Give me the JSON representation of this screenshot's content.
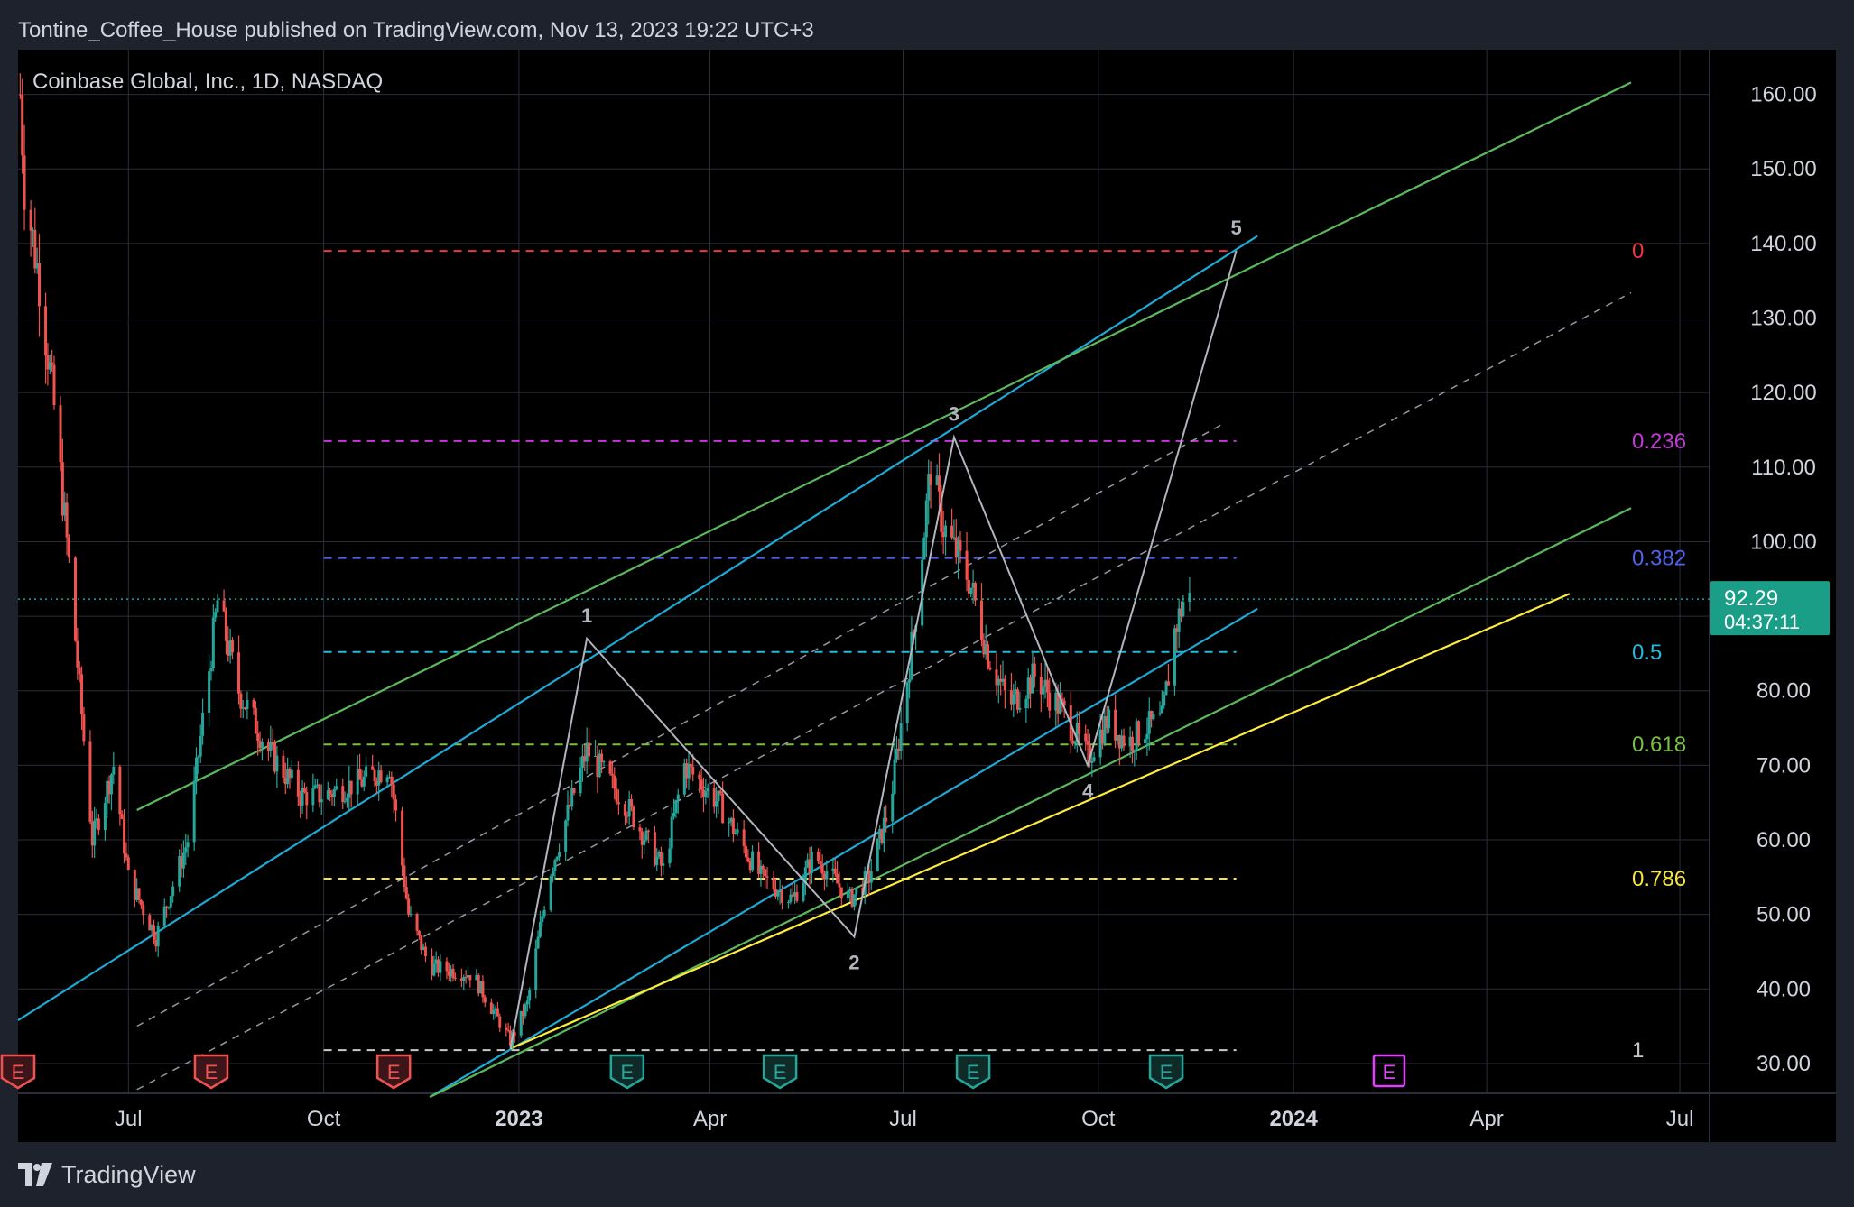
{
  "header": {
    "published_line": "Tontine_Coffee_House published on TradingView.com, Nov 13, 2023 19:22 UTC+3"
  },
  "footer": {
    "brand": "TradingView",
    "logo_icon": "tradingview-logo-icon"
  },
  "colors": {
    "background": "#000000",
    "frame": "#1e222d",
    "grid": "#2a2e39",
    "candle_up": "#26a69a",
    "candle_down": "#ef5350",
    "channel_cyan": "#1fa9d6",
    "channel_green": "#5cb85c",
    "yellow_line": "#ffeb3b",
    "wave_path": "#b2b5be",
    "last_price_bg": "#1a9e87",
    "earnings_past_down": "#ef5350",
    "earnings_past_up": "#26a69a",
    "earnings_future": "#e040fb"
  },
  "chart_data": {
    "type": "candlestick",
    "title": "Coinbase Global, Inc., 1D, NASDAQ",
    "symbol": "Coinbase Global, Inc.",
    "interval": "1D",
    "exchange": "NASDAQ",
    "ylim": [
      26,
      166
    ],
    "xlim": [
      "2022-05-10",
      "2024-07-15"
    ],
    "grid": true,
    "y_ticks": [
      "160.00",
      "150.00",
      "140.00",
      "130.00",
      "120.00",
      "110.00",
      "100.00",
      "80.00",
      "70.00",
      "60.00",
      "50.00",
      "40.00",
      "30.00"
    ],
    "y_tick_values": [
      160,
      150,
      140,
      130,
      120,
      110,
      100,
      80,
      70,
      60,
      50,
      40,
      30
    ],
    "x_ticks": [
      {
        "label": "Jul",
        "date": "2022-07-01",
        "bold": false
      },
      {
        "label": "Oct",
        "date": "2022-10-01",
        "bold": false
      },
      {
        "label": "2023",
        "date": "2023-01-01",
        "bold": true
      },
      {
        "label": "Apr",
        "date": "2023-04-01",
        "bold": false
      },
      {
        "label": "Jul",
        "date": "2023-07-01",
        "bold": false
      },
      {
        "label": "Oct",
        "date": "2023-10-01",
        "bold": false
      },
      {
        "label": "2024",
        "date": "2024-01-01",
        "bold": true
      },
      {
        "label": "Apr",
        "date": "2024-04-01",
        "bold": false
      },
      {
        "label": "Jul",
        "date": "2024-07-01",
        "bold": false
      }
    ],
    "last_price": {
      "value": 92.29,
      "label": "92.29",
      "countdown": "04:37:11"
    },
    "price_anchors": [
      {
        "date": "2022-05-11",
        "price": 160
      },
      {
        "date": "2022-05-13",
        "price": 148
      },
      {
        "date": "2022-05-20",
        "price": 135
      },
      {
        "date": "2022-05-27",
        "price": 118
      },
      {
        "date": "2022-06-03",
        "price": 97
      },
      {
        "date": "2022-06-14",
        "price": 60
      },
      {
        "date": "2022-06-24",
        "price": 70
      },
      {
        "date": "2022-07-01",
        "price": 55
      },
      {
        "date": "2022-07-14",
        "price": 47
      },
      {
        "date": "2022-07-29",
        "price": 60
      },
      {
        "date": "2022-08-12",
        "price": 92
      },
      {
        "date": "2022-08-22",
        "price": 80
      },
      {
        "date": "2022-09-05",
        "price": 72
      },
      {
        "date": "2022-09-20",
        "price": 66
      },
      {
        "date": "2022-10-01",
        "price": 66
      },
      {
        "date": "2022-10-20",
        "price": 68
      },
      {
        "date": "2022-11-01",
        "price": 70
      },
      {
        "date": "2022-11-10",
        "price": 50
      },
      {
        "date": "2022-11-20",
        "price": 43
      },
      {
        "date": "2022-12-10",
        "price": 42
      },
      {
        "date": "2022-12-28",
        "price": 33
      },
      {
        "date": "2023-01-05",
        "price": 38
      },
      {
        "date": "2023-01-15",
        "price": 55
      },
      {
        "date": "2023-02-02",
        "price": 72
      },
      {
        "date": "2023-02-20",
        "price": 65
      },
      {
        "date": "2023-03-10",
        "price": 56
      },
      {
        "date": "2023-03-20",
        "price": 70
      },
      {
        "date": "2023-04-05",
        "price": 65
      },
      {
        "date": "2023-04-25",
        "price": 55
      },
      {
        "date": "2023-05-10",
        "price": 52
      },
      {
        "date": "2023-05-20",
        "price": 58
      },
      {
        "date": "2023-06-06",
        "price": 52
      },
      {
        "date": "2023-06-15",
        "price": 55
      },
      {
        "date": "2023-06-25",
        "price": 65
      },
      {
        "date": "2023-07-06",
        "price": 88
      },
      {
        "date": "2023-07-14",
        "price": 110
      },
      {
        "date": "2023-07-20",
        "price": 102
      },
      {
        "date": "2023-08-01",
        "price": 95
      },
      {
        "date": "2023-08-10",
        "price": 85
      },
      {
        "date": "2023-08-20",
        "price": 78
      },
      {
        "date": "2023-09-01",
        "price": 82
      },
      {
        "date": "2023-09-15",
        "price": 77
      },
      {
        "date": "2023-09-26",
        "price": 71
      },
      {
        "date": "2023-10-05",
        "price": 76
      },
      {
        "date": "2023-10-15",
        "price": 73
      },
      {
        "date": "2023-10-23",
        "price": 75
      },
      {
        "date": "2023-10-31",
        "price": 76
      },
      {
        "date": "2023-11-06",
        "price": 88
      },
      {
        "date": "2023-11-10",
        "price": 92
      },
      {
        "date": "2023-11-13",
        "price": 92.29
      }
    ],
    "fibonacci": {
      "start_date": "2022-10-01",
      "end_date": "2023-12-05",
      "levels": [
        {
          "ratio": "0",
          "price": 139,
          "color": "#f23645"
        },
        {
          "ratio": "0.236",
          "price": 113.5,
          "color": "#c239d6"
        },
        {
          "ratio": "0.382",
          "price": 97.8,
          "color": "#4f63e8"
        },
        {
          "ratio": "0.5",
          "price": 85.2,
          "color": "#22b8df"
        },
        {
          "ratio": "0.618",
          "price": 72.8,
          "color": "#7bc043"
        },
        {
          "ratio": "0.786",
          "price": 54.8,
          "color": "#f5e642"
        },
        {
          "ratio": "1",
          "price": 31.8,
          "color": "#c8c8c8"
        }
      ]
    },
    "elliott_waves": [
      {
        "label": "",
        "date": "2022-12-28",
        "price": 32
      },
      {
        "label": "1",
        "date": "2023-02-02",
        "price": 87
      },
      {
        "label": "2",
        "date": "2023-06-08",
        "price": 47
      },
      {
        "label": "3",
        "date": "2023-07-25",
        "price": 114
      },
      {
        "label": "4",
        "date": "2023-09-26",
        "price": 70
      },
      {
        "label": "5",
        "date": "2023-12-05",
        "price": 139
      }
    ],
    "trend_lines": [
      {
        "name": "upper-cyan",
        "color": "#1fa9d6",
        "dash": false,
        "p1": {
          "date": "2022-05-10",
          "price": 35.8
        },
        "p2": {
          "date": "2023-12-15",
          "price": 141
        }
      },
      {
        "name": "upper-green",
        "color": "#5cb85c",
        "dash": false,
        "p1": {
          "date": "2022-07-05",
          "price": 64
        },
        "p2": {
          "date": "2024-06-08",
          "price": 161.6
        }
      },
      {
        "name": "mid-dashed-1",
        "color": "#9598a1",
        "dash": true,
        "p1": {
          "date": "2022-07-05",
          "price": 35
        },
        "p2": {
          "date": "2023-11-30",
          "price": 116
        }
      },
      {
        "name": "mid-dashed-2",
        "color": "#9598a1",
        "dash": true,
        "p1": {
          "date": "2022-07-05",
          "price": 26.5
        },
        "p2": {
          "date": "2024-06-08",
          "price": 133.4
        }
      },
      {
        "name": "lower-cyan",
        "color": "#1fa9d6",
        "dash": false,
        "p1": {
          "date": "2022-11-20",
          "price": 25.5
        },
        "p2": {
          "date": "2023-12-15",
          "price": 91
        }
      },
      {
        "name": "lower-green",
        "color": "#5cb85c",
        "dash": false,
        "p1": {
          "date": "2022-11-20",
          "price": 25.5
        },
        "p2": {
          "date": "2024-06-08",
          "price": 104.5
        }
      },
      {
        "name": "yellow-support",
        "color": "#ffeb3b",
        "dash": false,
        "p1": {
          "date": "2022-12-28",
          "price": 32
        },
        "p2": {
          "date": "2024-05-10",
          "price": 93
        }
      }
    ],
    "earnings_markers": [
      {
        "date": "2022-05-10",
        "result": "down"
      },
      {
        "date": "2022-08-09",
        "result": "down"
      },
      {
        "date": "2022-11-03",
        "result": "down"
      },
      {
        "date": "2023-02-21",
        "result": "up"
      },
      {
        "date": "2023-05-04",
        "result": "up"
      },
      {
        "date": "2023-08-03",
        "result": "up"
      },
      {
        "date": "2023-11-02",
        "result": "up"
      },
      {
        "date": "2024-02-15",
        "result": "future"
      }
    ],
    "earnings_label": "E"
  }
}
